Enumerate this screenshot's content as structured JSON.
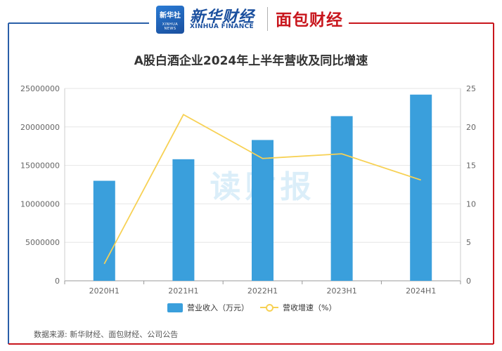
{
  "header": {
    "logo_cn": "新华社",
    "logo_en": "XINHUA NEWS",
    "brand_cn": "新华财经",
    "brand_en": "XINHUA FINANCE",
    "partner": "面包财经"
  },
  "colors": {
    "bar": "#3a9fdc",
    "line": "#f7d154",
    "frame_left": "#2a5fa8",
    "frame_right": "#c8161d",
    "grid": "#e6e6e6"
  },
  "watermark": "读财报",
  "source": "数据来源: 新华财经、面包财经、公司公告",
  "chart_data": {
    "type": "bar",
    "title": "A股白酒企业2024年上半年营收及同比增速",
    "categories": [
      "2020H1",
      "2021H1",
      "2022H1",
      "2023H1",
      "2024H1"
    ],
    "series": [
      {
        "name": "营业收入（万元）",
        "type": "bar",
        "axis": "left",
        "values": [
          13000000,
          15800000,
          18300000,
          21400000,
          24200000
        ]
      },
      {
        "name": "营收增速（%）",
        "type": "line",
        "axis": "right",
        "values": [
          2.2,
          21.6,
          15.9,
          16.5,
          13.1
        ]
      }
    ],
    "y_left": {
      "min": 0,
      "max": 25000000,
      "ticks": [
        "0",
        "5000000",
        "10000000",
        "15000000",
        "20000000",
        "25000000"
      ]
    },
    "y_right": {
      "min": 0,
      "max": 25,
      "ticks": [
        "0",
        "5",
        "10",
        "15",
        "20",
        "25"
      ]
    },
    "legend_position": "bottom",
    "grid": true
  }
}
